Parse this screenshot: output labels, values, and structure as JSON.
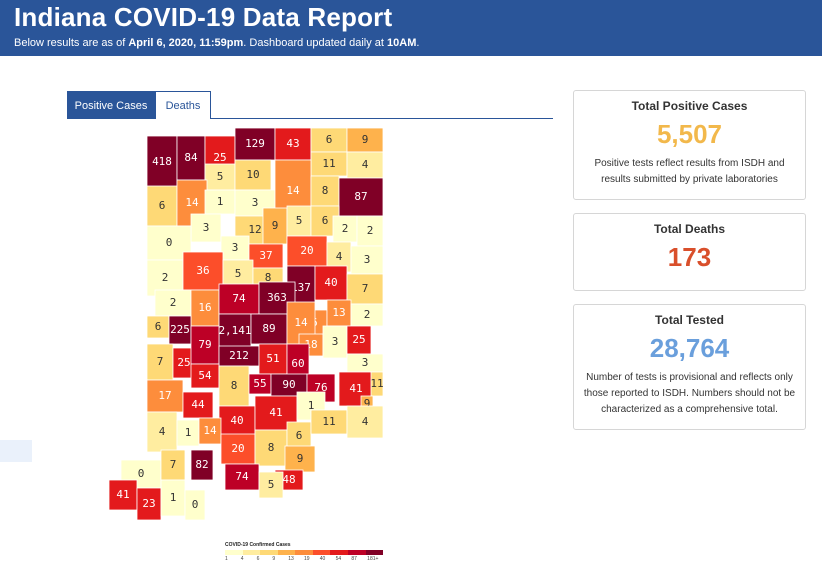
{
  "header": {
    "title": "Indiana COVID-19 Data Report",
    "sub_prefix": "Below results are as of ",
    "sub_date": "April 6, 2020, 11:59pm",
    "sub_mid": ". Dashboard updated daily at ",
    "sub_time": "10AM",
    "sub_end": "."
  },
  "tabs": {
    "positive": "Positive Cases",
    "deaths": "Deaths"
  },
  "cards": {
    "positive": {
      "title": "Total Positive Cases",
      "value": "5,507",
      "note": "Positive tests reflect results from ISDH and results submitted by private laboratories",
      "color": "#f2b84b"
    },
    "deaths": {
      "title": "Total Deaths",
      "value": "173",
      "color": "#d94f2b"
    },
    "tested": {
      "title": "Total Tested",
      "value": "28,764",
      "note": "Number of tests is provisional and reflects only those reported to ISDH. Numbers should not be characterized as a comprehensive total.",
      "color": "#6a9fdc"
    }
  },
  "legend": {
    "title": "COVID-19 Confirmed Cases",
    "ticks": [
      "1",
      "4",
      "6",
      "9",
      "13",
      "19",
      "40",
      "54",
      "87",
      "181+"
    ],
    "colors": [
      "#ffffcc",
      "#ffeda0",
      "#fed976",
      "#feb24c",
      "#fd8d3c",
      "#fc4e2a",
      "#e31a1c",
      "#bd0026",
      "#800026"
    ]
  },
  "map": {
    "counties": [
      {
        "v": "418",
        "c": "#800026"
      },
      {
        "v": "84",
        "c": "#800026"
      },
      {
        "v": "25",
        "c": "#e31a1c"
      },
      {
        "v": "129",
        "c": "#800026"
      },
      {
        "v": "43",
        "c": "#e31a1c"
      },
      {
        "v": "6",
        "c": "#fed976"
      },
      {
        "v": "9",
        "c": "#feb24c"
      },
      {
        "v": "5",
        "c": "#ffeda0"
      },
      {
        "v": "10",
        "c": "#fed976"
      },
      {
        "v": "11",
        "c": "#fed976"
      },
      {
        "v": "4",
        "c": "#ffeda0"
      },
      {
        "v": "6",
        "c": "#fed976"
      },
      {
        "v": "14",
        "c": "#fd8d3c"
      },
      {
        "v": "1",
        "c": "#ffffcc"
      },
      {
        "v": "3",
        "c": "#ffffcc"
      },
      {
        "v": "14",
        "c": "#fd8d3c"
      },
      {
        "v": "8",
        "c": "#fed976"
      },
      {
        "v": "87",
        "c": "#800026"
      },
      {
        "v": "3",
        "c": "#ffffcc"
      },
      {
        "v": "12",
        "c": "#fed976"
      },
      {
        "v": "9",
        "c": "#feb24c"
      },
      {
        "v": "5",
        "c": "#ffeda0"
      },
      {
        "v": "6",
        "c": "#fed976"
      },
      {
        "v": "2",
        "c": "#ffffcc"
      },
      {
        "v": "2",
        "c": "#ffffcc"
      },
      {
        "v": "0",
        "c": "#ffffcc"
      },
      {
        "v": "3",
        "c": "#ffffcc"
      },
      {
        "v": "37",
        "c": "#fc4e2a"
      },
      {
        "v": "20",
        "c": "#fc4e2a"
      },
      {
        "v": "4",
        "c": "#ffeda0"
      },
      {
        "v": "3",
        "c": "#ffffcc"
      },
      {
        "v": "2",
        "c": "#ffffcc"
      },
      {
        "v": "36",
        "c": "#fc4e2a"
      },
      {
        "v": "5",
        "c": "#ffeda0"
      },
      {
        "v": "8",
        "c": "#fed976"
      },
      {
        "v": "137",
        "c": "#800026"
      },
      {
        "v": "40",
        "c": "#e31a1c"
      },
      {
        "v": "7",
        "c": "#fed976"
      },
      {
        "v": "2",
        "c": "#ffffcc"
      },
      {
        "v": "16",
        "c": "#fd8d3c"
      },
      {
        "v": "74",
        "c": "#bd0026"
      },
      {
        "v": "363",
        "c": "#800026"
      },
      {
        "v": "16",
        "c": "#fd8d3c"
      },
      {
        "v": "13",
        "c": "#fd8d3c"
      },
      {
        "v": "2",
        "c": "#ffffcc"
      },
      {
        "v": "6",
        "c": "#fed976"
      },
      {
        "v": "225",
        "c": "#800026"
      },
      {
        "v": "2,141",
        "c": "#800026"
      },
      {
        "v": "89",
        "c": "#800026"
      },
      {
        "v": "14",
        "c": "#fd8d3c"
      },
      {
        "v": "18",
        "c": "#fd8d3c"
      },
      {
        "v": "3",
        "c": "#ffffcc"
      },
      {
        "v": "25",
        "c": "#e31a1c"
      },
      {
        "v": "7",
        "c": "#fed976"
      },
      {
        "v": "25",
        "c": "#e31a1c"
      },
      {
        "v": "79",
        "c": "#bd0026"
      },
      {
        "v": "212",
        "c": "#800026"
      },
      {
        "v": "51",
        "c": "#e31a1c"
      },
      {
        "v": "60",
        "c": "#bd0026"
      },
      {
        "v": "3",
        "c": "#ffffcc"
      },
      {
        "v": "17",
        "c": "#fd8d3c"
      },
      {
        "v": "54",
        "c": "#e31a1c"
      },
      {
        "v": "8",
        "c": "#fed976"
      },
      {
        "v": "55",
        "c": "#bd0026"
      },
      {
        "v": "90",
        "c": "#800026"
      },
      {
        "v": "76",
        "c": "#bd0026"
      },
      {
        "v": "41",
        "c": "#e31a1c"
      },
      {
        "v": "11",
        "c": "#fed976"
      },
      {
        "v": "44",
        "c": "#e31a1c"
      },
      {
        "v": "40",
        "c": "#e31a1c"
      },
      {
        "v": "41",
        "c": "#e31a1c"
      },
      {
        "v": "1",
        "c": "#ffffcc"
      },
      {
        "v": "9",
        "c": "#feb24c"
      },
      {
        "v": "4",
        "c": "#ffeda0"
      },
      {
        "v": "1",
        "c": "#ffffcc"
      },
      {
        "v": "14",
        "c": "#fd8d3c"
      },
      {
        "v": "20",
        "c": "#fc4e2a"
      },
      {
        "v": "8",
        "c": "#fed976"
      },
      {
        "v": "6",
        "c": "#fed976"
      },
      {
        "v": "11",
        "c": "#fed976"
      },
      {
        "v": "4",
        "c": "#ffeda0"
      },
      {
        "v": "0",
        "c": "#ffffcc"
      },
      {
        "v": "7",
        "c": "#fed976"
      },
      {
        "v": "82",
        "c": "#800026"
      },
      {
        "v": "9",
        "c": "#feb24c"
      },
      {
        "v": "74",
        "c": "#bd0026"
      },
      {
        "v": "48",
        "c": "#e31a1c"
      },
      {
        "v": "5",
        "c": "#ffeda0"
      },
      {
        "v": "41",
        "c": "#e31a1c"
      },
      {
        "v": "23",
        "c": "#e31a1c"
      },
      {
        "v": "1",
        "c": "#ffffcc"
      },
      {
        "v": "0",
        "c": "#ffffcc"
      }
    ]
  }
}
